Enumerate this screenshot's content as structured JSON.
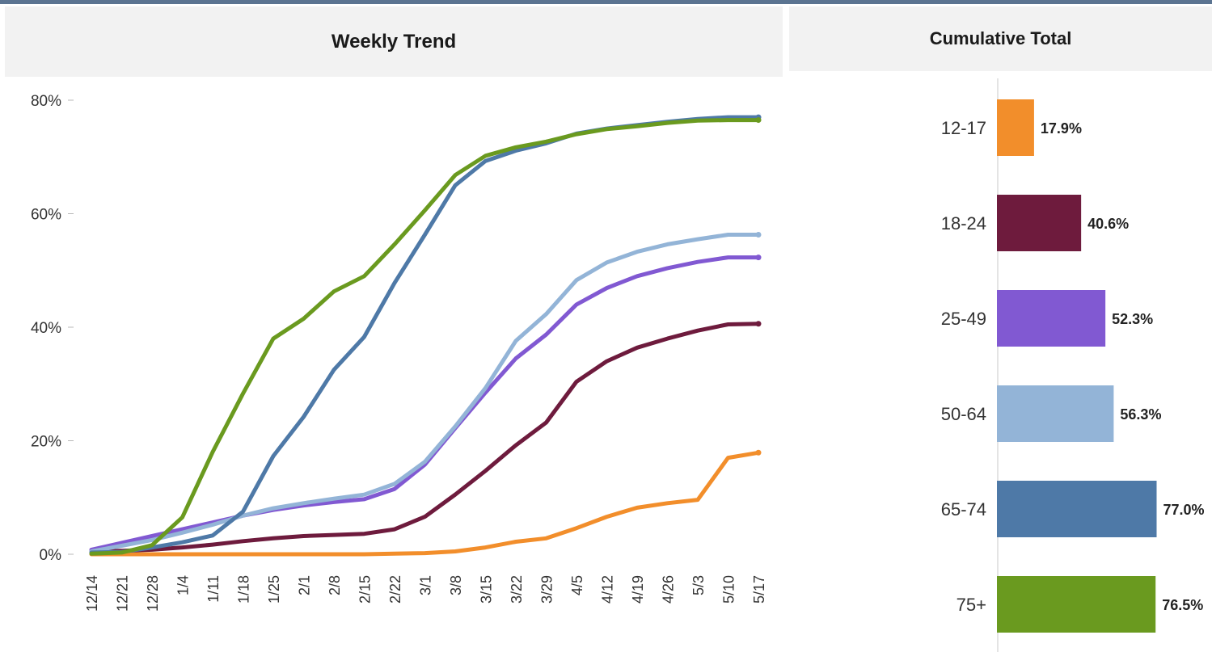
{
  "left_panel": {
    "title": "Weekly Trend"
  },
  "right_panel": {
    "title": "Cumulative Total"
  },
  "colors": {
    "topbar": "#5b7491",
    "header_bg": "#f2f2f2",
    "12-17": "#f28e2b",
    "18-24": "#6e1b3d",
    "25-49": "#8159d2",
    "50-64": "#93b4d7",
    "65-74": "#4e79a7",
    "75+": "#6a9a1f"
  },
  "chart_data": [
    {
      "type": "line",
      "title": "Weekly Trend",
      "xlabel": "",
      "ylabel": "",
      "categories": [
        "12/14",
        "12/21",
        "12/28",
        "1/4",
        "1/11",
        "1/18",
        "1/25",
        "2/1",
        "2/8",
        "2/15",
        "2/22",
        "3/1",
        "3/8",
        "3/15",
        "3/22",
        "3/29",
        "4/5",
        "4/12",
        "4/19",
        "4/26",
        "5/3",
        "5/10",
        "5/17"
      ],
      "yticks": [
        "0%",
        "20%",
        "40%",
        "60%",
        "80%"
      ],
      "ylim": [
        0,
        80
      ],
      "grid": false,
      "legend": "none",
      "series": [
        {
          "name": "12-17",
          "color": "#f28e2b",
          "values": [
            0,
            0,
            0,
            0,
            0,
            0,
            0,
            0,
            0,
            0,
            0.1,
            0.2,
            0.5,
            1.2,
            2.2,
            2.8,
            4.6,
            6.6,
            8.2,
            9.0,
            9.6,
            17.0,
            17.9
          ]
        },
        {
          "name": "18-24",
          "color": "#6e1b3d",
          "values": [
            0.5,
            0.6,
            0.8,
            1.2,
            1.7,
            2.3,
            2.8,
            3.2,
            3.4,
            3.6,
            4.4,
            6.6,
            10.5,
            14.7,
            19.2,
            23.2,
            30.4,
            34.0,
            36.4,
            38.0,
            39.4,
            40.5,
            40.6
          ]
        },
        {
          "name": "25-49",
          "color": "#8159d2",
          "values": [
            0.8,
            2.0,
            3.2,
            4.4,
            5.6,
            6.8,
            7.8,
            8.6,
            9.2,
            9.7,
            11.5,
            15.8,
            22.2,
            28.5,
            34.5,
            38.7,
            44.0,
            46.9,
            49.0,
            50.4,
            51.5,
            52.3,
            52.3
          ]
        },
        {
          "name": "50-64",
          "color": "#93b4d7",
          "values": [
            0.5,
            1.5,
            2.5,
            3.8,
            5.2,
            6.8,
            8.1,
            9.0,
            9.8,
            10.5,
            12.4,
            16.3,
            22.5,
            29.3,
            37.6,
            42.3,
            48.3,
            51.4,
            53.3,
            54.6,
            55.5,
            56.3,
            56.3
          ]
        },
        {
          "name": "65-74",
          "color": "#4e79a7",
          "values": [
            0.3,
            0.4,
            1.2,
            2.1,
            3.3,
            7.5,
            17.3,
            24.2,
            32.5,
            38.3,
            47.8,
            56.3,
            65.0,
            69.3,
            71.1,
            72.4,
            74.1,
            75.0,
            75.6,
            76.2,
            76.7,
            77.0,
            77.0
          ]
        },
        {
          "name": "75+",
          "color": "#6a9a1f",
          "values": [
            0.1,
            0.3,
            1.6,
            6.5,
            18.0,
            28.3,
            38.0,
            41.5,
            46.3,
            49.0,
            54.6,
            60.6,
            66.8,
            70.2,
            71.7,
            72.7,
            74.0,
            74.9,
            75.4,
            76.0,
            76.4,
            76.5,
            76.5
          ]
        }
      ]
    },
    {
      "type": "bar",
      "orientation": "horizontal",
      "title": "Cumulative Total",
      "xlabel": "",
      "ylabel": "",
      "categories": [
        "12-17",
        "18-24",
        "25-49",
        "50-64",
        "65-74",
        "75+"
      ],
      "values": [
        17.9,
        40.6,
        52.3,
        56.3,
        77.0,
        76.5
      ],
      "value_labels": [
        "17.9%",
        "40.6%",
        "52.3%",
        "56.3%",
        "77.0%",
        "76.5%"
      ],
      "colors": [
        "#f28e2b",
        "#6e1b3d",
        "#8159d2",
        "#93b4d7",
        "#4e79a7",
        "#6a9a1f"
      ],
      "grid": false,
      "legend": "none"
    }
  ]
}
